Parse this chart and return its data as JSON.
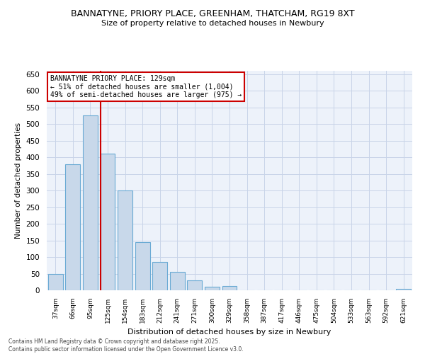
{
  "title_line1": "BANNATYNE, PRIORY PLACE, GREENHAM, THATCHAM, RG19 8XT",
  "title_line2": "Size of property relative to detached houses in Newbury",
  "xlabel": "Distribution of detached houses by size in Newbury",
  "ylabel": "Number of detached properties",
  "categories": [
    "37sqm",
    "66sqm",
    "95sqm",
    "125sqm",
    "154sqm",
    "183sqm",
    "212sqm",
    "241sqm",
    "271sqm",
    "300sqm",
    "329sqm",
    "358sqm",
    "387sqm",
    "417sqm",
    "446sqm",
    "475sqm",
    "504sqm",
    "533sqm",
    "563sqm",
    "592sqm",
    "621sqm"
  ],
  "values": [
    50,
    380,
    525,
    410,
    300,
    145,
    85,
    55,
    30,
    10,
    12,
    0,
    0,
    0,
    0,
    0,
    0,
    0,
    0,
    0,
    5
  ],
  "bar_color": "#c8d8ea",
  "bar_edge_color": "#6aaad4",
  "bar_edge_width": 0.8,
  "vline_x_index": 3,
  "vline_color": "#cc0000",
  "annotation_line1": "BANNATYNE PRIORY PLACE: 129sqm",
  "annotation_line2": "← 51% of detached houses are smaller (1,004)",
  "annotation_line3": "49% of semi-detached houses are larger (975) →",
  "annotation_box_color": "#cc0000",
  "ylim": [
    0,
    660
  ],
  "yticks": [
    0,
    50,
    100,
    150,
    200,
    250,
    300,
    350,
    400,
    450,
    500,
    550,
    600,
    650
  ],
  "grid_color": "#c8d4e8",
  "background_color": "#edf2fa",
  "footer_line1": "Contains HM Land Registry data © Crown copyright and database right 2025.",
  "footer_line2": "Contains public sector information licensed under the Open Government Licence v3.0."
}
